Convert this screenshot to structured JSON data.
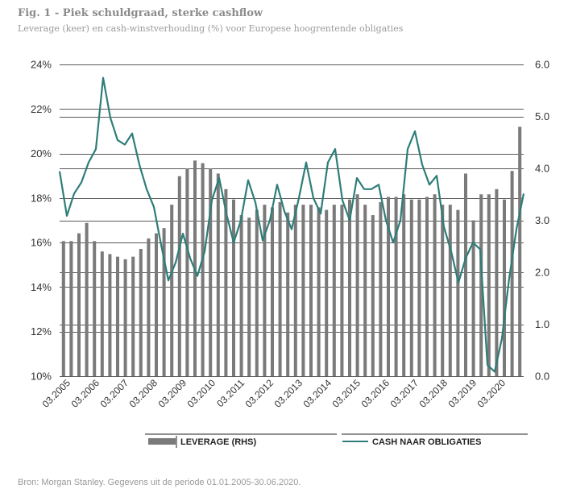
{
  "title": "Fig. 1 - Piek schuldgraad, sterke cashflow",
  "subtitle": "Leverage (keer) en cash-winstverhouding (%) voor Europese hoogrentende obligaties",
  "source": "Bron: Morgan Stanley. Gegevens uit de periode 01.01.2005-30.06.2020.",
  "colors": {
    "bar": "#7a7a7a",
    "line": "#2e7d78",
    "grid": "#222222"
  },
  "chart_data": {
    "type": "bar+line",
    "title": "Fig. 1 - Piek schuldgraad, sterke cashflow",
    "subtitle": "Leverage (keer) en cash-winstverhouding (%) voor Europese hoogrentende obligaties",
    "x_start": "03.2005",
    "x_end": "06.2020",
    "x_tick_labels": [
      "03.2005",
      "03.2006",
      "03.2007",
      "03.2008",
      "03.2009",
      "03.2010",
      "03.2011",
      "03.2012",
      "03.2013",
      "03.2014",
      "03.2015",
      "03.2016",
      "03.2017",
      "03.2018",
      "03.2019",
      "03.2020"
    ],
    "y_left": {
      "range": [
        10,
        24
      ],
      "tick_labels": [
        "10%",
        "12%",
        "14%",
        "16%",
        "18%",
        "20%",
        "22%",
        "24%"
      ]
    },
    "y_right": {
      "range": [
        0,
        6
      ],
      "tick_labels": [
        "0.0",
        "1.0",
        "2.0",
        "3.0",
        "4.0",
        "5.0",
        "6.0"
      ]
    },
    "grid": true,
    "legend_position": "bottom",
    "series": [
      {
        "name": "LEVERAGE (RHS)",
        "type": "bar",
        "axis": "right",
        "values": [
          2.6,
          2.6,
          2.75,
          2.95,
          2.6,
          2.4,
          2.35,
          2.3,
          2.25,
          2.3,
          2.45,
          2.65,
          2.75,
          2.85,
          3.3,
          3.85,
          4.0,
          4.15,
          4.1,
          4.0,
          3.9,
          3.6,
          3.4,
          3.1,
          3.05,
          3.2,
          3.3,
          3.25,
          3.35,
          3.15,
          3.3,
          3.3,
          3.3,
          3.25,
          3.2,
          3.3,
          3.3,
          3.4,
          3.5,
          3.3,
          3.1,
          3.35,
          3.45,
          3.45,
          3.5,
          3.4,
          3.4,
          3.45,
          3.5,
          3.3,
          3.3,
          3.2,
          3.9,
          3.0,
          3.5,
          3.5,
          3.6,
          3.4,
          3.95,
          4.8
        ]
      },
      {
        "name": "CASH NAAR OBLIGATIES",
        "type": "line",
        "axis": "left",
        "values": [
          19.2,
          17.2,
          18.2,
          18.7,
          19.6,
          20.2,
          23.4,
          21.6,
          20.6,
          20.4,
          20.9,
          19.5,
          18.4,
          17.6,
          15.9,
          14.3,
          15.1,
          16.4,
          15.3,
          14.5,
          15.6,
          17.9,
          18.9,
          17.3,
          16.0,
          17.0,
          18.8,
          17.8,
          16.1,
          17.0,
          18.6,
          17.4,
          16.6,
          18.0,
          19.6,
          18.0,
          17.3,
          19.6,
          20.2,
          17.9,
          17.0,
          18.9,
          18.4,
          18.4,
          18.6,
          17.0,
          16.0,
          17.0,
          20.2,
          21.0,
          19.5,
          18.6,
          19.0,
          16.7,
          15.6,
          14.2,
          15.3,
          16.0,
          15.7,
          10.5,
          10.2,
          11.7,
          14.4,
          16.6,
          18.2
        ]
      }
    ]
  },
  "legend": {
    "bar_label": "LEVERAGE (RHS)",
    "line_label": "CASH NAAR OBLIGATIES"
  }
}
